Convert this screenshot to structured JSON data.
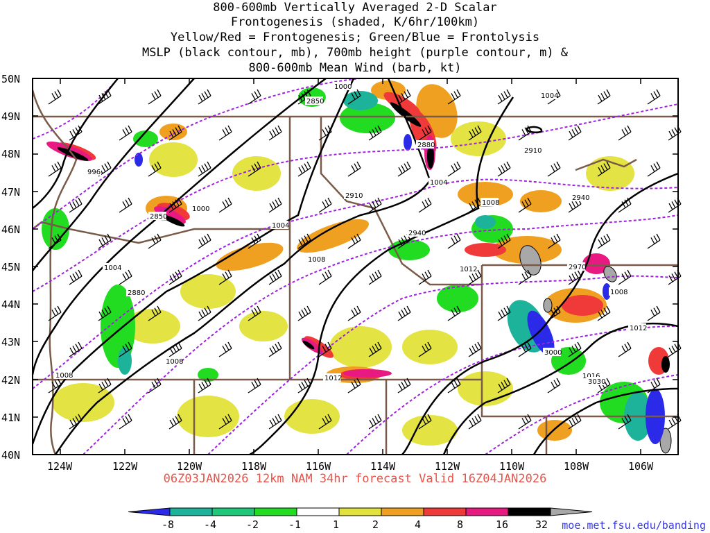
{
  "title_lines": [
    "800-600mb Vertically Averaged 2-D Scalar",
    "Frontogenesis (shaded, K/6hr/100km)",
    "Yellow/Red = Frontogenesis;  Green/Blue = Frontolysis",
    "MSLP (black contour, mb), 700mb height (purple contour, m) &",
    "800-600mb Mean Wind (barb, kt)"
  ],
  "footer": "06Z03JAN2026 12km NAM 34hr forecast Valid 16Z04JAN2026",
  "url": "moe.met.fsu.edu/banding",
  "map": {
    "lat_labels": [
      "50N",
      "49N",
      "48N",
      "47N",
      "46N",
      "45N",
      "44N",
      "43N",
      "42N",
      "41N",
      "40N"
    ],
    "lon_labels": [
      "124W",
      "122W",
      "120W",
      "118W",
      "116W",
      "114W",
      "112W",
      "110W",
      "108W",
      "106W"
    ],
    "mslp_labels": [
      "1000",
      "1004",
      "996",
      "1000",
      "1004",
      "1008",
      "1004",
      "1008",
      "1012",
      "1008",
      "1008",
      "1012",
      "1016",
      "1004",
      "1008",
      "1012"
    ],
    "height_labels": [
      "2850",
      "2880",
      "2910",
      "2850",
      "2880",
      "2910",
      "2940",
      "2940",
      "2970",
      "3000",
      "3030"
    ]
  },
  "colorbar": {
    "labels": [
      "-8",
      "-4",
      "-2",
      "-1",
      "1",
      "2",
      "4",
      "8",
      "16",
      "32"
    ],
    "colors": [
      "#2a2ae8",
      "#1db39a",
      "#1ec87a",
      "#22dc22",
      "#ffffff",
      "#e2e23a",
      "#f0a020",
      "#f03a3a",
      "#e81a82",
      "#000000",
      "#a8a8a8"
    ]
  },
  "colors": {
    "mslp": "#000000",
    "height": "#a020e0",
    "borders": "#7a5a48",
    "footer": "#e8544b",
    "url": "#3838e8"
  }
}
